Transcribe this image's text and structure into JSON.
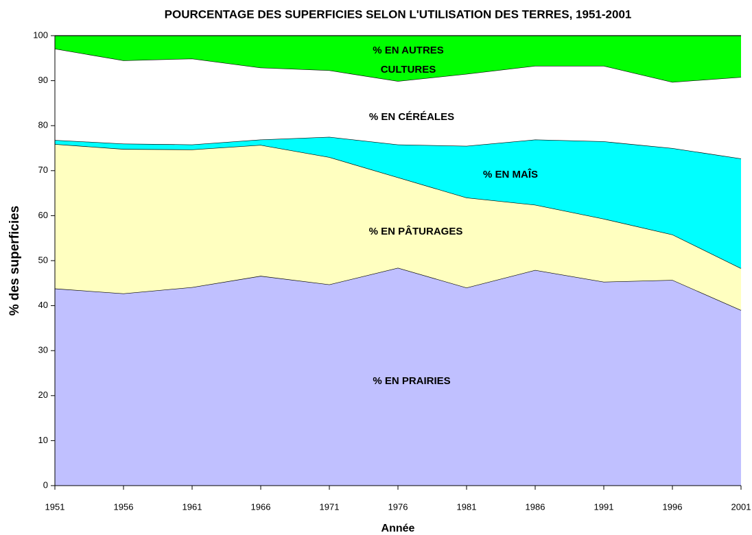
{
  "chart_data": {
    "type": "stacked_area",
    "title": "POURCENTAGE DES SUPERFICIES SELON L'UTILISATION DES TERRES, 1951-2001",
    "xlabel": "Année",
    "ylabel": "% des superficies",
    "x": [
      1951,
      1956,
      1961,
      1966,
      1971,
      1976,
      1981,
      1986,
      1991,
      1996,
      2001
    ],
    "xlim": [
      1951,
      2001
    ],
    "xticks": [
      1951,
      1956,
      1961,
      1966,
      1971,
      1976,
      1981,
      1986,
      1991,
      1996,
      2001
    ],
    "ylim": [
      0,
      100
    ],
    "yticks": [
      0,
      10,
      20,
      30,
      40,
      50,
      60,
      70,
      80,
      90,
      100
    ],
    "series": [
      {
        "name": "% EN PRAIRIES",
        "color": "#c0c0ff",
        "values": [
          43.8,
          42.7,
          44.1,
          46.6,
          44.7,
          48.4,
          44.0,
          47.9,
          45.3,
          45.7,
          39.0
        ]
      },
      {
        "name": "% EN PÂTURAGES",
        "color": "#ffffc0",
        "values": [
          32.1,
          32.1,
          30.6,
          29.1,
          28.3,
          20.1,
          20.0,
          14.5,
          14.0,
          10.1,
          9.3
        ]
      },
      {
        "name": "% EN MAÎS",
        "color": "#00ffff",
        "values": [
          0.9,
          1.2,
          1.1,
          1.2,
          4.5,
          7.3,
          11.5,
          14.5,
          17.2,
          19.2,
          24.4
        ]
      },
      {
        "name": "% EN CÉRÉALES",
        "color": "#ffffff",
        "values": [
          20.3,
          18.5,
          19.1,
          16.0,
          14.8,
          14.1,
          16.0,
          16.4,
          16.8,
          14.7,
          18.1
        ]
      },
      {
        "name": "% EN AUTRES CULTURES",
        "color": "#00ff00",
        "values": [
          2.9,
          5.5,
          5.1,
          7.1,
          7.7,
          10.1,
          8.5,
          6.7,
          6.7,
          10.3,
          9.2
        ]
      }
    ]
  }
}
